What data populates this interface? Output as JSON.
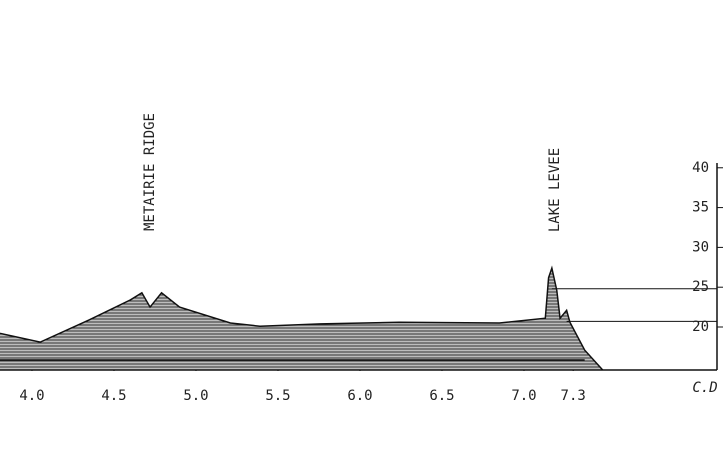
{
  "chart_data": {
    "type": "area",
    "annotations": [
      "METAIRIE RIDGE",
      "LAKE LEVEE"
    ],
    "y_axis_label": "C.D",
    "x": [
      3.805,
      4.05,
      4.35,
      4.6,
      4.67,
      4.72,
      4.79,
      4.9,
      5.21,
      5.39,
      5.76,
      6.24,
      6.85,
      7.13,
      7.15,
      7.17,
      7.2,
      7.22,
      7.26,
      7.28,
      7.37,
      7.48
    ],
    "values": [
      19.2,
      18.1,
      20.9,
      23.4,
      24.3,
      22.5,
      24.3,
      22.5,
      20.5,
      20.1,
      20.4,
      20.6,
      20.5,
      21.1,
      26.2,
      27.4,
      24.6,
      21.1,
      22.1,
      20.6,
      17.1,
      14.6
    ],
    "color": "#7a7a7a",
    "reference_lines": [
      24.8,
      20.7
    ],
    "xlim": [
      3.805,
      8.244
    ],
    "ylim": [
      14.6,
      40.6
    ],
    "xticks": [
      {
        "value": 4.0,
        "label": "4.0"
      },
      4.5,
      {
        "value": 5.0,
        "label": "5.0"
      },
      5.5,
      {
        "value": 6.0,
        "label": "6.0"
      },
      6.5,
      {
        "value": 7.0,
        "label": "7.0"
      },
      7.3
    ],
    "yticks": [
      20,
      25,
      30,
      35,
      40
    ]
  }
}
